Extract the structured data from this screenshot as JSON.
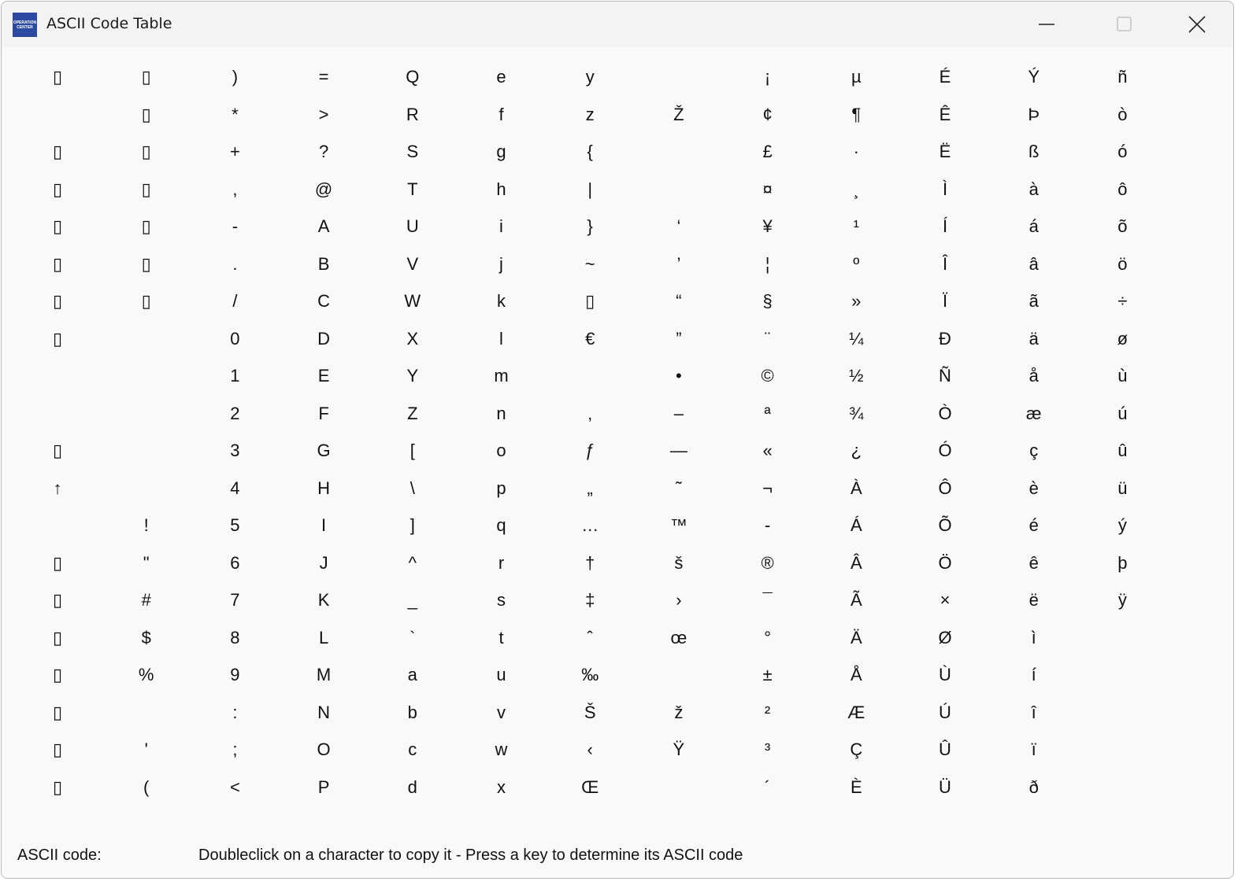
{
  "window": {
    "title": "ASCII Code Table",
    "logo_text": "OPERATION CENTER"
  },
  "table": {
    "columns": [
      [
        "▯",
        "",
        "▯",
        "▯",
        "▯",
        "▯",
        "▯",
        "▯",
        "",
        "",
        "▯",
        "↑",
        "",
        "▯",
        "▯",
        "▯",
        "▯",
        "▯",
        "▯",
        "▯"
      ],
      [
        "▯",
        "▯",
        "▯",
        "▯",
        "▯",
        "▯",
        "▯",
        "",
        "",
        "",
        "",
        "",
        "!",
        "\"",
        "#",
        "$",
        "%",
        "",
        "'",
        "("
      ],
      [
        ")",
        "*",
        "+",
        ",",
        "-",
        ".",
        "/",
        "0",
        "1",
        "2",
        "3",
        "4",
        "5",
        "6",
        "7",
        "8",
        "9",
        ":",
        ";",
        "<"
      ],
      [
        "=",
        ">",
        "?",
        "@",
        "A",
        "B",
        "C",
        "D",
        "E",
        "F",
        "G",
        "H",
        "I",
        "J",
        "K",
        "L",
        "M",
        "N",
        "O",
        "P"
      ],
      [
        "Q",
        "R",
        "S",
        "T",
        "U",
        "V",
        "W",
        "X",
        "Y",
        "Z",
        "[",
        "\\",
        "]",
        "^",
        "_",
        "`",
        "a",
        "b",
        "c",
        "d"
      ],
      [
        "e",
        "f",
        "g",
        "h",
        "i",
        "j",
        "k",
        "l",
        "m",
        "n",
        "o",
        "p",
        "q",
        "r",
        "s",
        "t",
        "u",
        "v",
        "w",
        "x"
      ],
      [
        "y",
        "z",
        "{",
        "|",
        "}",
        "~",
        "▯",
        "€",
        "",
        "‚",
        "ƒ",
        "„",
        "…",
        "†",
        "‡",
        "ˆ",
        "‰",
        "Š",
        "‹",
        "Œ"
      ],
      [
        "",
        "Ž",
        "",
        "",
        "‘",
        "’",
        "“",
        "”",
        "•",
        "–",
        "—",
        "˜",
        "™",
        "š",
        "›",
        "œ",
        "",
        "ž",
        "Ÿ",
        ""
      ],
      [
        "¡",
        "¢",
        "£",
        "¤",
        "¥",
        "¦",
        "§",
        "¨",
        "©",
        "ª",
        "«",
        "¬",
        "-",
        "®",
        "¯",
        "°",
        "±",
        "²",
        "³",
        "´"
      ],
      [
        "µ",
        "¶",
        "·",
        "¸",
        "¹",
        "º",
        "»",
        "¼",
        "½",
        "¾",
        "¿",
        "À",
        "Á",
        "Â",
        "Ã",
        "Ä",
        "Å",
        "Æ",
        "Ç",
        "È"
      ],
      [
        "É",
        "Ê",
        "Ë",
        "Ì",
        "Í",
        "Î",
        "Ï",
        "Ð",
        "Ñ",
        "Ò",
        "Ó",
        "Ô",
        "Õ",
        "Ö",
        "×",
        "Ø",
        "Ù",
        "Ú",
        "Û",
        "Ü"
      ],
      [
        "Ý",
        "Þ",
        "ß",
        "à",
        "á",
        "â",
        "ã",
        "ä",
        "å",
        "æ",
        "ç",
        "è",
        "é",
        "ê",
        "ë",
        "ì",
        "í",
        "î",
        "ï",
        "ð"
      ],
      [
        "ñ",
        "ò",
        "ó",
        "ô",
        "õ",
        "ö",
        "÷",
        "ø",
        "ù",
        "ú",
        "û",
        "ü",
        "ý",
        "þ",
        "ÿ"
      ]
    ]
  },
  "footer": {
    "code_label": "ASCII code:",
    "hint": "Doubleclick on a character to copy it - Press a key to determine its ASCII code"
  }
}
